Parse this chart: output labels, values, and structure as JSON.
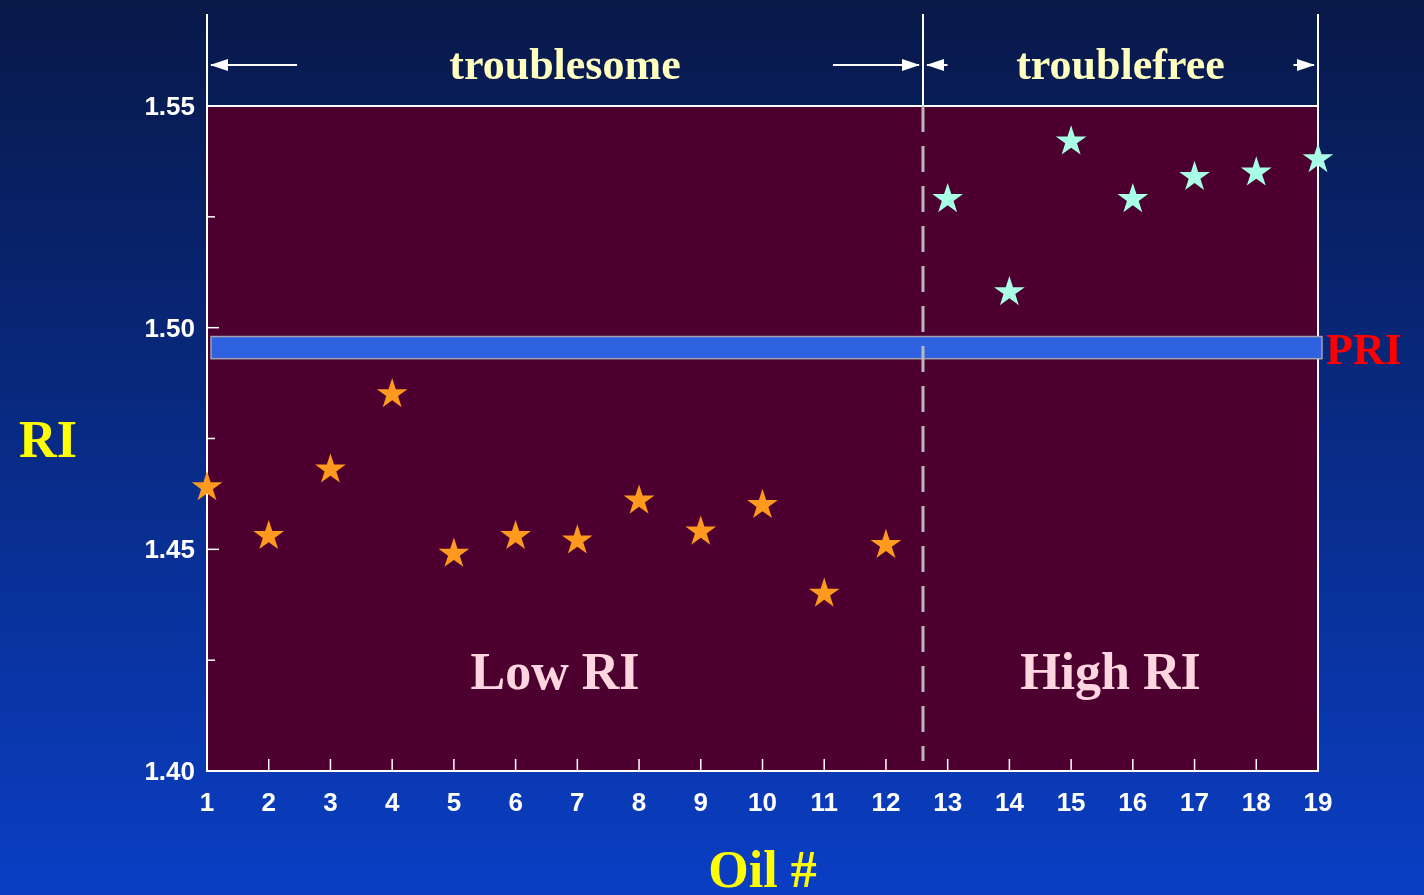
{
  "chart_data": {
    "type": "scatter",
    "xlabel": "Oil #",
    "ylabel": "RI",
    "xlim": [
      1,
      19
    ],
    "xticks": [
      1,
      2,
      3,
      4,
      5,
      6,
      7,
      8,
      9,
      10,
      11,
      12,
      13,
      14,
      15,
      16,
      17,
      18,
      19
    ],
    "ylim": [
      1.4,
      1.55
    ],
    "yticks": [
      {
        "value": 1.4,
        "label": "1.40"
      },
      {
        "value": 1.425,
        "label": null
      },
      {
        "value": 1.45,
        "label": "1.45"
      },
      {
        "value": 1.475,
        "label": null
      },
      {
        "value": 1.5,
        "label": "1.50"
      },
      {
        "value": 1.525,
        "label": null
      },
      {
        "value": 1.55,
        "label": "1.55"
      }
    ],
    "marker": "star",
    "grid": false,
    "series": [
      {
        "color": "#ff9a1f",
        "x": [
          1,
          2,
          3,
          4,
          5,
          6,
          7,
          8,
          9,
          10,
          11,
          12
        ],
        "values": [
          1.464,
          1.453,
          1.468,
          1.485,
          1.449,
          1.453,
          1.452,
          1.461,
          1.454,
          1.46,
          1.44,
          1.451
        ]
      },
      {
        "color": "#a8ffe6",
        "x": [
          13,
          14,
          15,
          16,
          17,
          18,
          19
        ],
        "values": [
          1.529,
          1.508,
          1.542,
          1.529,
          1.534,
          1.535,
          1.538
        ]
      }
    ],
    "bands": [
      {
        "axis": "y",
        "from": 1.493,
        "to": 1.498,
        "label": "PRI",
        "color": "#2f62e0"
      }
    ],
    "ref_lines": [
      {
        "axis": "x",
        "value": 12.6,
        "color": "#b8b8b8",
        "line_style": "dashed"
      }
    ],
    "annotations": [
      "troublesome",
      "troublefree",
      "Low RI",
      "High RI"
    ]
  }
}
